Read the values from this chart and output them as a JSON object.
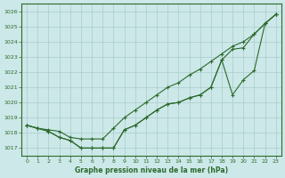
{
  "x": [
    0,
    1,
    2,
    3,
    4,
    5,
    6,
    7,
    8,
    9,
    10,
    11,
    12,
    13,
    14,
    15,
    16,
    17,
    18,
    19,
    20,
    21,
    22,
    23
  ],
  "lineA": [
    1018.5,
    1018.3,
    1018.2,
    1018.1,
    1017.7,
    1017.6,
    1017.6,
    1017.6,
    1018.3,
    1019.0,
    1019.5,
    1020.0,
    1020.5,
    1021.0,
    1021.3,
    1021.8,
    1022.2,
    1022.7,
    1023.2,
    1023.7,
    1024.0,
    1024.5,
    1025.2,
    1025.8
  ],
  "lineB": [
    1018.5,
    1018.3,
    1018.1,
    1017.7,
    1017.5,
    1017.0,
    1017.0,
    1017.0,
    1017.0,
    1018.2,
    1018.5,
    1019.0,
    1019.5,
    1019.9,
    1020.0,
    1020.3,
    1020.5,
    1021.0,
    1022.8,
    1023.5,
    1023.6,
    1024.5,
    1025.2,
    1025.8
  ],
  "lineC": [
    1018.5,
    1018.3,
    1018.1,
    1017.7,
    1017.5,
    1017.0,
    1017.0,
    1017.0,
    1017.0,
    1018.2,
    1018.5,
    1019.0,
    1019.5,
    1019.9,
    1020.0,
    1020.3,
    1020.5,
    1021.0,
    1022.8,
    1020.5,
    1021.5,
    1022.1,
    1025.2,
    1025.8
  ],
  "ylim": [
    1016.5,
    1026.5
  ],
  "yticks": [
    1017,
    1018,
    1019,
    1020,
    1021,
    1022,
    1023,
    1024,
    1025,
    1026
  ],
  "xticks": [
    0,
    1,
    2,
    3,
    4,
    5,
    6,
    7,
    8,
    9,
    10,
    11,
    12,
    13,
    14,
    15,
    16,
    17,
    18,
    19,
    20,
    21,
    22,
    23
  ],
  "xlabel": "Graphe pression niveau de la mer (hPa)",
  "line_color": "#2d6a2d",
  "bg_color": "#cce8e8",
  "grid_color": "#aacccc"
}
